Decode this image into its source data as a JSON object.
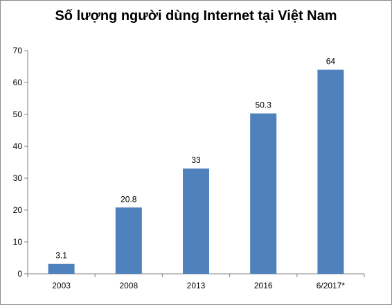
{
  "chart_data": {
    "type": "bar",
    "title": "Số lượng người dùng Internet tại Việt Nam",
    "categories": [
      "2003",
      "2008",
      "2013",
      "2016",
      "6/2017*"
    ],
    "values": [
      3.1,
      20.8,
      33,
      50.3,
      64
    ],
    "data_labels": [
      "3.1",
      "20.8",
      "33",
      "50.3",
      "64"
    ],
    "ylim": [
      0,
      70
    ],
    "yticks": [
      "0",
      "10",
      "20",
      "30",
      "40",
      "50",
      "60",
      "70"
    ],
    "grid": false,
    "legend": "none",
    "bar_color": "#4f81bd"
  }
}
